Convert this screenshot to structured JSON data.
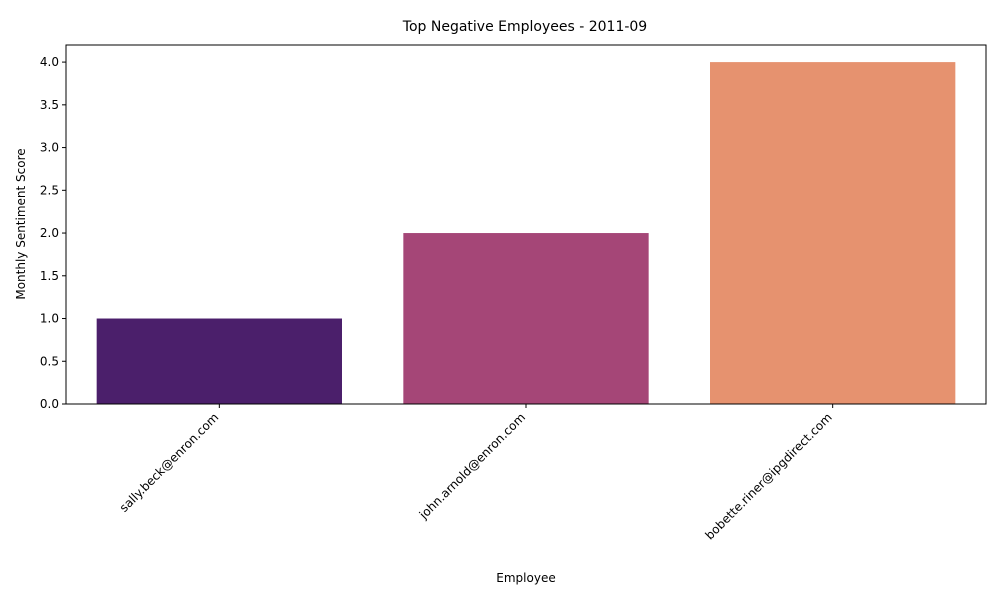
{
  "chart_data": {
    "type": "bar",
    "title": "Top Negative Employees - 2011-09",
    "xlabel": "Employee",
    "ylabel": "Monthly Sentiment Score",
    "categories": [
      "sally.beck@enron.com",
      "john.arnold@enron.com",
      "bobette.riner@ipgdirect.com"
    ],
    "values": [
      1,
      2,
      4
    ],
    "colors": [
      "#4b1f6b",
      "#a54677",
      "#e6926f"
    ],
    "ylim": [
      0,
      4.2
    ],
    "yticks": [
      0.0,
      0.5,
      1.0,
      1.5,
      2.0,
      2.5,
      3.0,
      3.5,
      4.0
    ],
    "ytick_labels": [
      "0.0",
      "0.5",
      "1.0",
      "1.5",
      "2.0",
      "2.5",
      "3.0",
      "3.5",
      "4.0"
    ],
    "grid": false,
    "legend": "none"
  }
}
